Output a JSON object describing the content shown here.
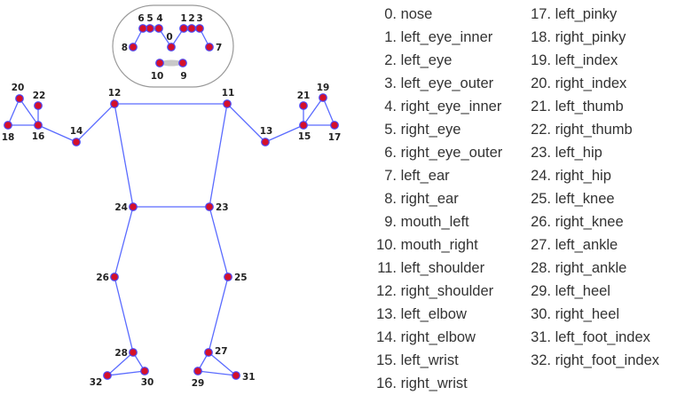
{
  "colors": {
    "edge": "#5a6bff",
    "joint_fill": "#d4102a",
    "joint_stroke": "#4a4aff",
    "face_box": "#999999",
    "text": "#333333"
  },
  "landmarks": [
    {
      "id": "0",
      "name": "nose"
    },
    {
      "id": "1",
      "name": "left_eye_inner"
    },
    {
      "id": "2",
      "name": "left_eye"
    },
    {
      "id": "3",
      "name": "left_eye_outer"
    },
    {
      "id": "4",
      "name": "right_eye_inner"
    },
    {
      "id": "5",
      "name": "right_eye"
    },
    {
      "id": "6",
      "name": "right_eye_outer"
    },
    {
      "id": "7",
      "name": "left_ear"
    },
    {
      "id": "8",
      "name": "right_ear"
    },
    {
      "id": "9",
      "name": "mouth_left"
    },
    {
      "id": "10",
      "name": "mouth_right"
    },
    {
      "id": "11",
      "name": "left_shoulder"
    },
    {
      "id": "12",
      "name": "right_shoulder"
    },
    {
      "id": "13",
      "name": "left_elbow"
    },
    {
      "id": "14",
      "name": "right_elbow"
    },
    {
      "id": "15",
      "name": "left_wrist"
    },
    {
      "id": "16",
      "name": "right_wrist"
    },
    {
      "id": "17",
      "name": "left_pinky"
    },
    {
      "id": "18",
      "name": "right_pinky"
    },
    {
      "id": "19",
      "name": "left_index"
    },
    {
      "id": "20",
      "name": "right_index"
    },
    {
      "id": "21",
      "name": "left_thumb"
    },
    {
      "id": "22",
      "name": "right_thumb"
    },
    {
      "id": "23",
      "name": "left_hip"
    },
    {
      "id": "24",
      "name": "right_hip"
    },
    {
      "id": "25",
      "name": "left_knee"
    },
    {
      "id": "26",
      "name": "right_knee"
    },
    {
      "id": "27",
      "name": "left_ankle"
    },
    {
      "id": "28",
      "name": "right_ankle"
    },
    {
      "id": "29",
      "name": "left_heel"
    },
    {
      "id": "30",
      "name": "right_heel"
    },
    {
      "id": "31",
      "name": "left_foot_index"
    },
    {
      "id": "32",
      "name": "right_foot_index"
    }
  ]
}
